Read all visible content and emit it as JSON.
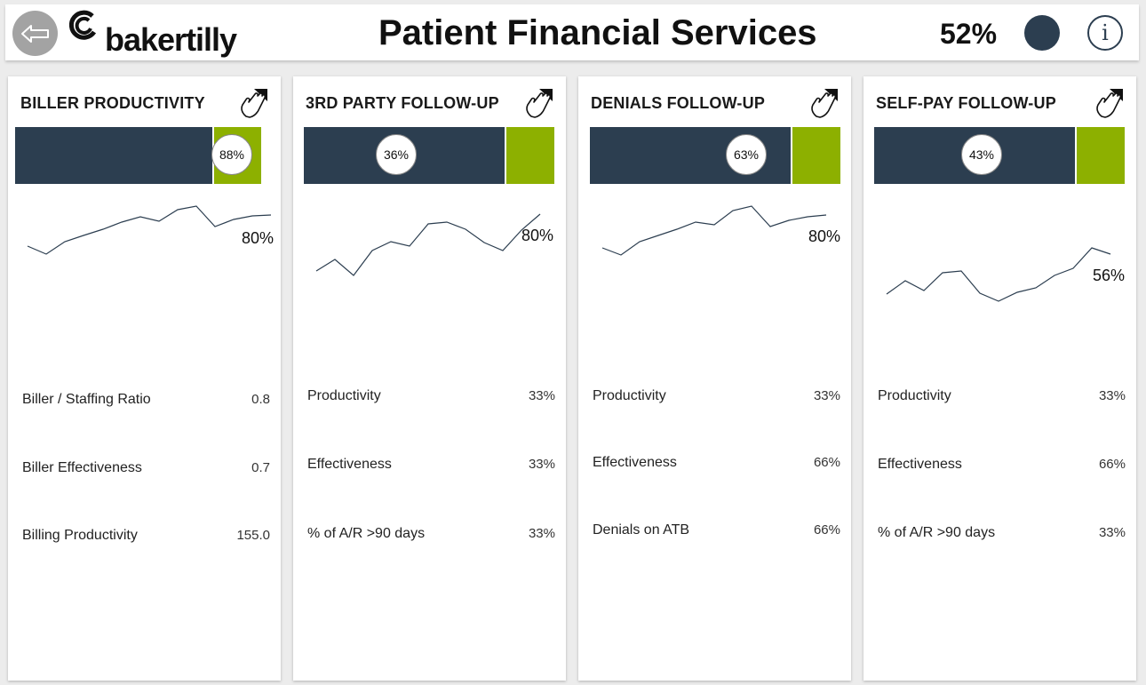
{
  "header": {
    "back_label": "Back",
    "logo_text": "bakertilly",
    "title": "Patient Financial Services",
    "overall_pct": "52%",
    "status_color": "#2c3e50",
    "info_label": "i"
  },
  "colors": {
    "dark": "#2c3e50",
    "accent": "#8db000"
  },
  "cards": [
    {
      "title": "BILLER PRODUCTIVITY",
      "bar_fraction": 0.8,
      "badge": "88%",
      "trend_label": "80%",
      "metrics": [
        {
          "label": "Biller / Staffing Ratio",
          "value": "0.8"
        },
        {
          "label": "Biller Effectiveness",
          "value": "0.7"
        },
        {
          "label": "Billing Productivity",
          "value": "155.0"
        }
      ]
    },
    {
      "title": "3RD PARTY FOLLOW-UP",
      "bar_fraction": 0.8,
      "badge": "36%",
      "trend_label": "80%",
      "metrics": [
        {
          "label": "Productivity",
          "value": "33%"
        },
        {
          "label": "Effectiveness",
          "value": "33%"
        },
        {
          "label": "% of A/R >90 days",
          "value": "33%"
        }
      ]
    },
    {
      "title": "DENIALS FOLLOW-UP",
      "bar_fraction": 0.8,
      "badge": "63%",
      "trend_label": "80%",
      "metrics": [
        {
          "label": "Productivity",
          "value": "33%"
        },
        {
          "label": "Effectiveness",
          "value": "66%"
        },
        {
          "label": "Denials on ATB",
          "value": "66%"
        }
      ]
    },
    {
      "title": "SELF-PAY FOLLOW-UP",
      "bar_fraction": 0.8,
      "badge": "43%",
      "trend_label": "56%",
      "metrics": [
        {
          "label": "Productivity",
          "value": "33%"
        },
        {
          "label": "Effectiveness",
          "value": "66%"
        },
        {
          "label": "% of A/R >90 days",
          "value": "33%"
        }
      ]
    }
  ]
}
